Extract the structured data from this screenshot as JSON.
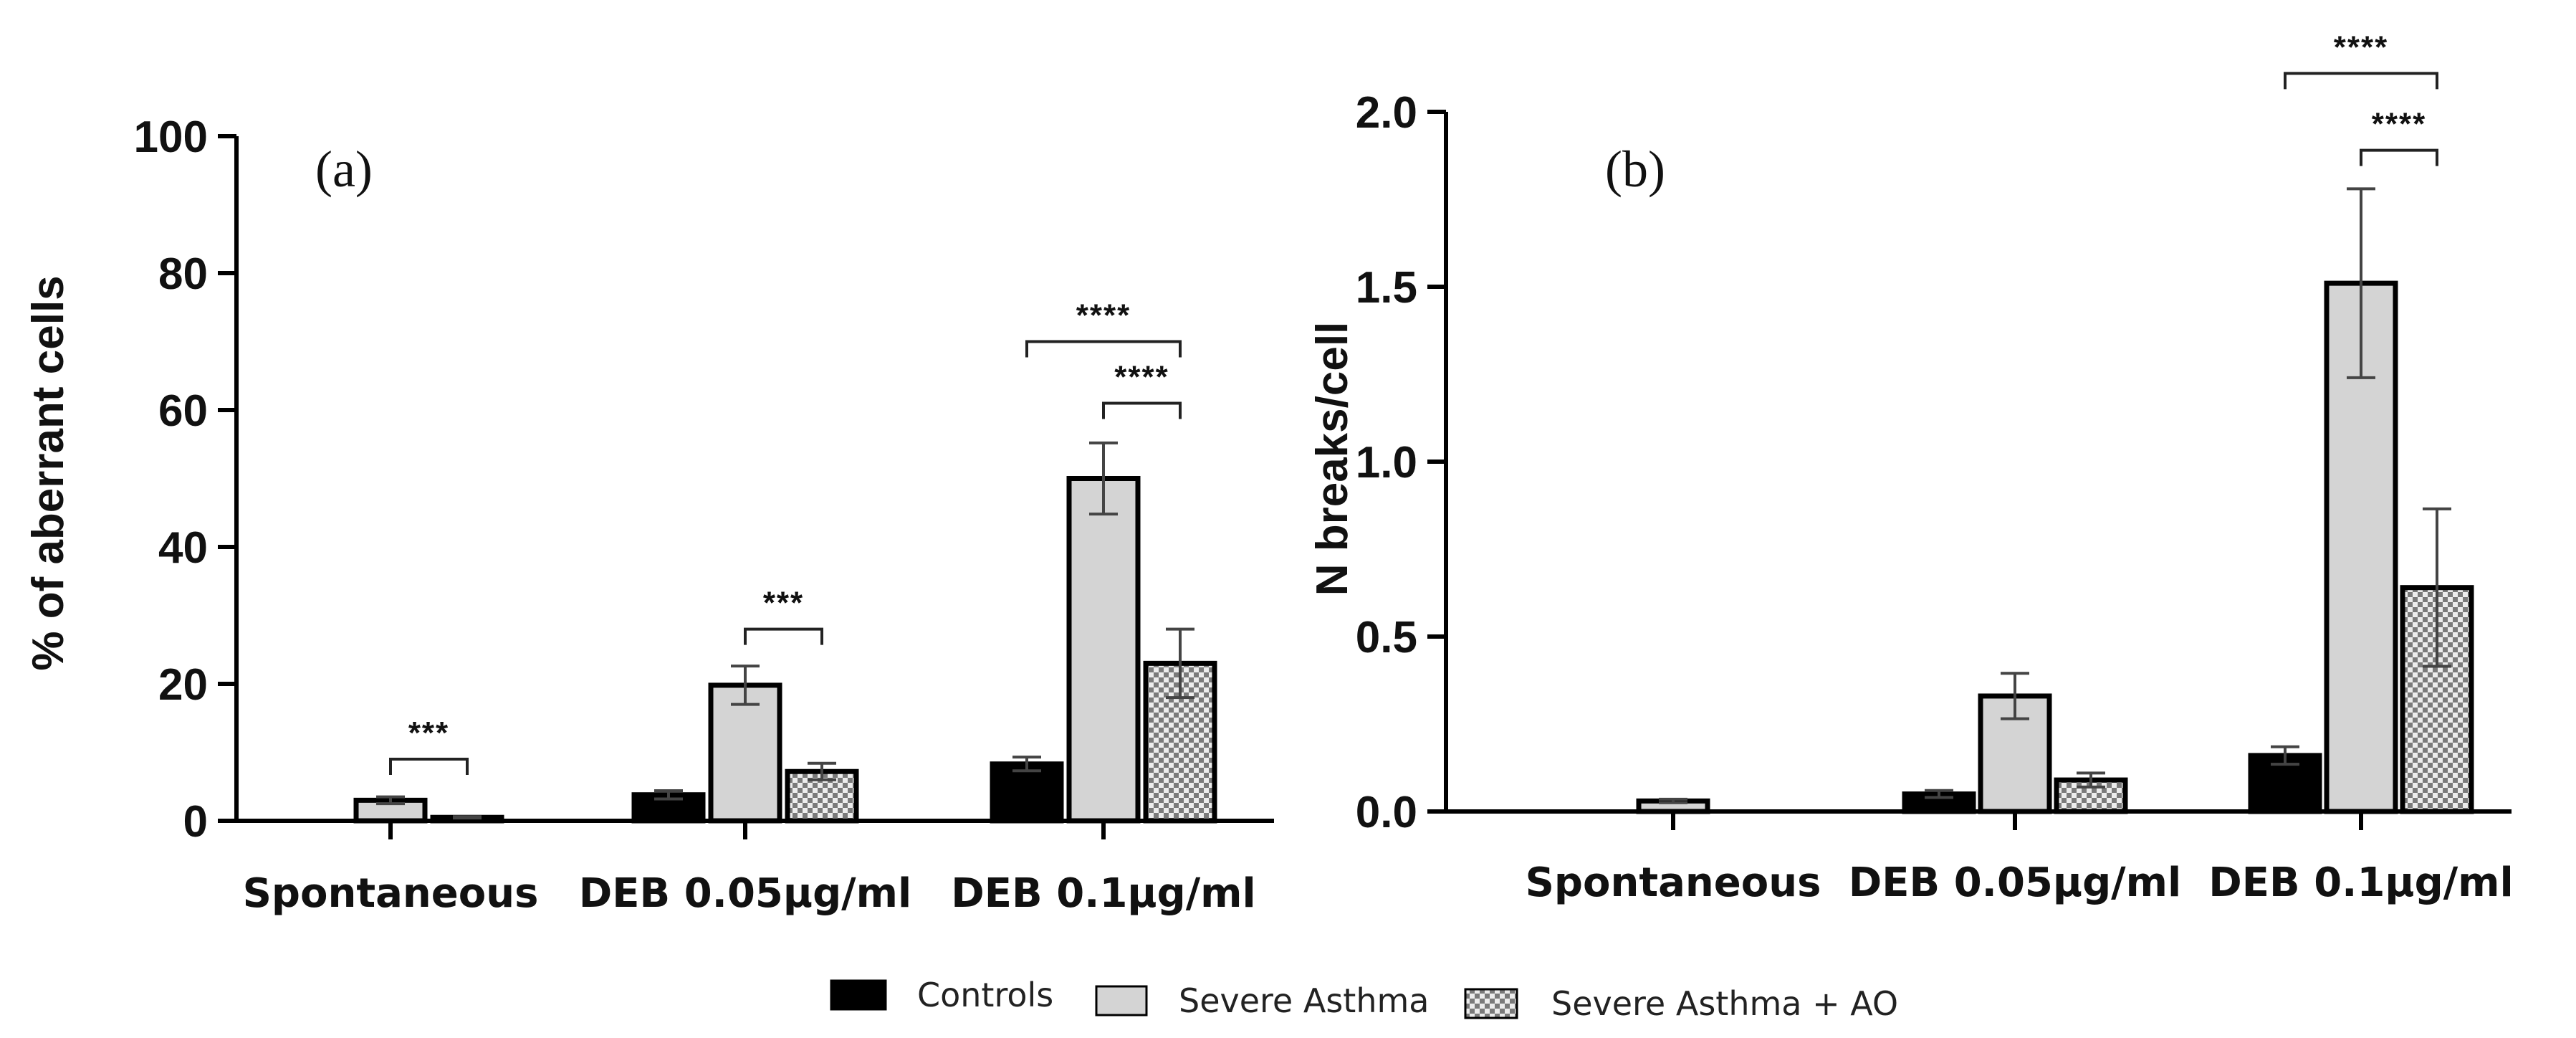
{
  "chart_data": [
    {
      "type": "bar",
      "panel_label": "(a)",
      "ylabel": "% of aberrant cells",
      "ylim": [
        0,
        100
      ],
      "yticks": [
        "0",
        "20",
        "40",
        "60",
        "80",
        "100"
      ],
      "ytick_values": [
        0,
        20,
        40,
        60,
        80,
        100
      ],
      "categories": [
        "Spontaneous",
        "DEB 0.05μg/ml",
        "DEB 0.1μg/ml"
      ],
      "series": [
        {
          "name": "Controls",
          "values": [
            0,
            3.8,
            8.3
          ],
          "errors": [
            0,
            0.6,
            1.0
          ]
        },
        {
          "name": "Severe Asthma",
          "values": [
            3.0,
            19.8,
            50.0
          ],
          "errors": [
            0.5,
            2.8,
            5.2
          ]
        },
        {
          "name": "Severe Asthma + AO",
          "values": [
            0.5,
            7.2,
            23.0
          ],
          "errors": [
            0.1,
            1.2,
            5.0
          ]
        }
      ],
      "significance": [
        {
          "category": 0,
          "from": 1,
          "to": 2,
          "label": "***",
          "level": 9.0
        },
        {
          "category": 1,
          "from": 1,
          "to": 2,
          "label": "***",
          "level": 28.0
        },
        {
          "category": 2,
          "from": 1,
          "to": 2,
          "label": "****",
          "level": 61.0
        },
        {
          "category": 2,
          "from": 0,
          "to": 2,
          "label": "****",
          "level": 70.0
        }
      ]
    },
    {
      "type": "bar",
      "panel_label": "(b)",
      "ylabel": "N breaks/cell",
      "ylim": [
        0,
        2.0
      ],
      "yticks": [
        "0.0",
        "0.5",
        "1.0",
        "1.5",
        "2.0"
      ],
      "ytick_values": [
        0,
        0.5,
        1.0,
        1.5,
        2.0
      ],
      "categories": [
        "Spontaneous",
        "DEB 0.05μg/ml",
        "DEB 0.1μg/ml"
      ],
      "series": [
        {
          "name": "Controls",
          "values": [
            0,
            0.05,
            0.16
          ],
          "errors": [
            0,
            0.01,
            0.025
          ]
        },
        {
          "name": "Severe Asthma",
          "values": [
            0.03,
            0.33,
            1.51
          ],
          "errors": [
            0.005,
            0.065,
            0.27
          ]
        },
        {
          "name": "Severe Asthma + AO",
          "values": [
            0,
            0.09,
            0.64
          ],
          "errors": [
            0,
            0.02,
            0.225
          ]
        }
      ],
      "significance": [
        {
          "category": 2,
          "from": 1,
          "to": 2,
          "label": "****",
          "level": 1.89
        },
        {
          "category": 2,
          "from": 0,
          "to": 2,
          "label": "****",
          "level": 2.11
        }
      ]
    }
  ],
  "legend": {
    "items": [
      {
        "label": "Controls",
        "fill": "black"
      },
      {
        "label": "Severe Asthma",
        "fill": "gray"
      },
      {
        "label": "Severe Asthma + AO",
        "fill": "checker"
      }
    ]
  },
  "colors": {
    "controls": "#000000",
    "severe_asthma": "#d4d4d4",
    "checker_light": "#ececec",
    "checker_dark": "#7a7a7a"
  }
}
